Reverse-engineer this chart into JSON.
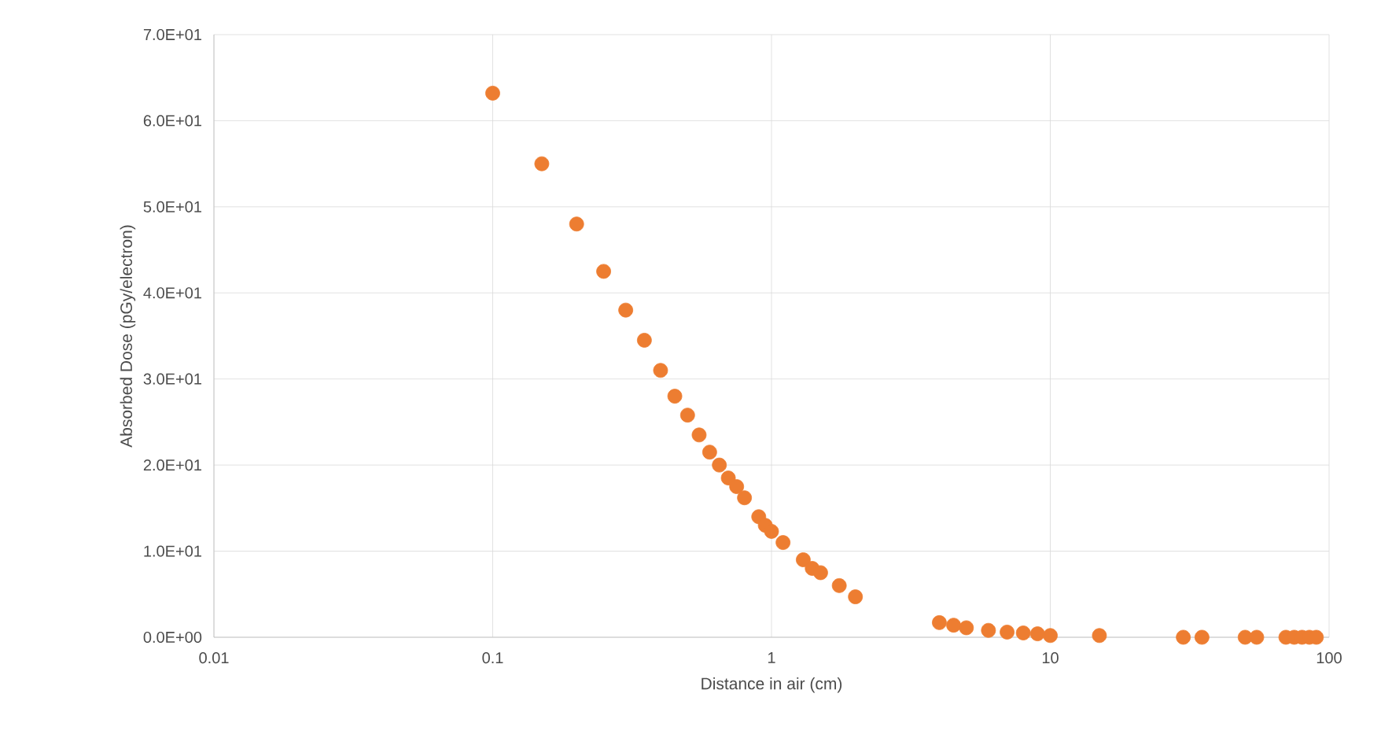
{
  "chart_data": {
    "type": "scatter",
    "xlabel": "Distance in air (cm)",
    "ylabel": "Absorbed Dose (pGy/electron)",
    "log": "x",
    "xlim": [
      0.01,
      100
    ],
    "xticks": [
      0.01,
      0.1,
      1,
      10,
      100
    ],
    "ylim": [
      0,
      70
    ],
    "yticks": [
      {
        "value": 0,
        "label": "0.0E+00"
      },
      {
        "value": 10,
        "label": "1.0E+01"
      },
      {
        "value": 20,
        "label": "2.0E+01"
      },
      {
        "value": 30,
        "label": "3.0E+01"
      },
      {
        "value": 40,
        "label": "4.0E+01"
      },
      {
        "value": 50,
        "label": "5.0E+01"
      },
      {
        "value": 60,
        "label": "6.0E+01"
      },
      {
        "value": 70,
        "label": "7.0E+01"
      }
    ],
    "grid": true,
    "marker": "circle",
    "color": "#ed7d31",
    "x": [
      0.1,
      0.15,
      0.2,
      0.25,
      0.3,
      0.35,
      0.4,
      0.45,
      0.5,
      0.55,
      0.6,
      0.65,
      0.7,
      0.75,
      0.8,
      0.9,
      0.95,
      1.0,
      1.1,
      1.3,
      1.4,
      1.5,
      1.75,
      2,
      4,
      4.5,
      5,
      6,
      7,
      8,
      9,
      10,
      15,
      30,
      35,
      50,
      55,
      70,
      75,
      80,
      85,
      90
    ],
    "values": [
      63.2,
      55,
      48,
      42.5,
      38,
      34.5,
      31,
      28,
      25.8,
      23.5,
      21.5,
      20,
      18.5,
      17.5,
      16.2,
      14,
      13,
      12.3,
      11,
      9,
      8,
      7.5,
      6,
      4.7,
      1.7,
      1.4,
      1.1,
      0.8,
      0.6,
      0.5,
      0.4,
      0.2,
      0.2,
      0,
      0,
      0,
      0,
      0,
      0,
      0,
      0,
      0
    ]
  }
}
